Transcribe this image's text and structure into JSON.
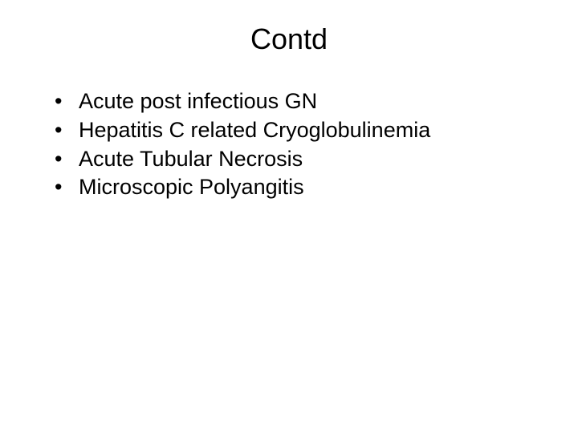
{
  "slide": {
    "title": "Contd",
    "title_fontsize": 36,
    "bullets": [
      {
        "text": "Acute post infectious GN"
      },
      {
        "text": "Hepatitis C related Cryoglobulinemia"
      },
      {
        "text": "Acute Tubular Necrosis"
      },
      {
        "text": "Microscopic Polyangitis"
      }
    ],
    "bullet_fontsize": 27,
    "bullet_marker": "•",
    "background_color": "#ffffff",
    "text_color": "#000000",
    "font_family": "Arial"
  }
}
